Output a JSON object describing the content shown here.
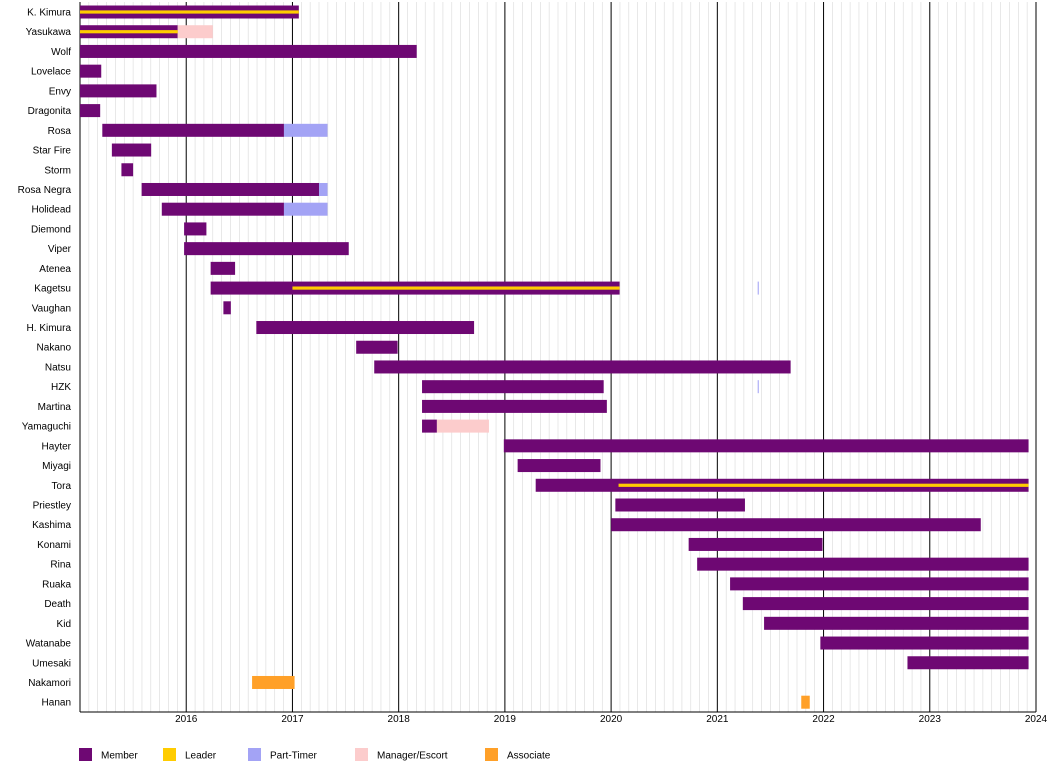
{
  "chart_data": {
    "type": "gantt",
    "title": "",
    "xlabel": "",
    "ylabel": "",
    "xlim": [
      2015.0,
      2024.0
    ],
    "x_ticks": [
      "2016",
      "2017",
      "2018",
      "2019",
      "2020",
      "2021",
      "2022",
      "2023",
      "2024"
    ],
    "grid": "monthly minor lines, yearly major lines",
    "legend_position": "bottom",
    "colors": {
      "Member": "#6e0873",
      "Leader": "#ffcc00",
      "Part-Timer": "#a3a3f5",
      "Manager/Escort": "#fccccc",
      "Associate": "#ffa028"
    },
    "legend": [
      "Member",
      "Leader",
      "Part-Timer",
      "Manager/Escort",
      "Associate"
    ],
    "rows": [
      {
        "name": "K. Kimura",
        "bars": [
          {
            "role": "Member",
            "start": 2015.0,
            "end": 2017.06
          },
          {
            "role": "Leader",
            "start": 2015.0,
            "end": 2017.06,
            "overlay": true
          }
        ]
      },
      {
        "name": "Yasukawa",
        "bars": [
          {
            "role": "Member",
            "start": 2015.0,
            "end": 2015.92
          },
          {
            "role": "Manager/Escort",
            "start": 2015.92,
            "end": 2016.25
          },
          {
            "role": "Leader",
            "start": 2015.0,
            "end": 2015.92,
            "overlay": true
          }
        ]
      },
      {
        "name": "Wolf",
        "bars": [
          {
            "role": "Member",
            "start": 2015.0,
            "end": 2018.17
          }
        ]
      },
      {
        "name": "Lovelace",
        "bars": [
          {
            "role": "Member",
            "start": 2015.0,
            "end": 2015.2
          }
        ]
      },
      {
        "name": "Envy",
        "bars": [
          {
            "role": "Member",
            "start": 2015.0,
            "end": 2015.72
          }
        ]
      },
      {
        "name": "Dragonita",
        "bars": [
          {
            "role": "Member",
            "start": 2015.0,
            "end": 2015.19
          }
        ]
      },
      {
        "name": "Rosa",
        "bars": [
          {
            "role": "Member",
            "start": 2015.21,
            "end": 2016.92
          },
          {
            "role": "Part-Timer",
            "start": 2016.92,
            "end": 2017.33
          }
        ]
      },
      {
        "name": "Star Fire",
        "bars": [
          {
            "role": "Member",
            "start": 2015.3,
            "end": 2015.67
          }
        ]
      },
      {
        "name": "Storm",
        "bars": [
          {
            "role": "Member",
            "start": 2015.39,
            "end": 2015.5
          }
        ]
      },
      {
        "name": "Rosa Negra",
        "bars": [
          {
            "role": "Member",
            "start": 2015.58,
            "end": 2017.25
          },
          {
            "role": "Part-Timer",
            "start": 2017.25,
            "end": 2017.33
          }
        ]
      },
      {
        "name": "Holidead",
        "bars": [
          {
            "role": "Member",
            "start": 2015.77,
            "end": 2016.92
          },
          {
            "role": "Part-Timer",
            "start": 2016.92,
            "end": 2017.33
          }
        ]
      },
      {
        "name": "Diemond",
        "bars": [
          {
            "role": "Member",
            "start": 2015.98,
            "end": 2016.19
          }
        ]
      },
      {
        "name": "Viper",
        "bars": [
          {
            "role": "Member",
            "start": 2015.98,
            "end": 2017.53
          }
        ]
      },
      {
        "name": "Atenea",
        "bars": [
          {
            "role": "Member",
            "start": 2016.23,
            "end": 2016.46
          }
        ]
      },
      {
        "name": "Kagetsu",
        "bars": [
          {
            "role": "Member",
            "start": 2016.23,
            "end": 2020.08
          },
          {
            "role": "Leader",
            "start": 2017.0,
            "end": 2020.08,
            "overlay": true
          },
          {
            "role": "Part-Timer",
            "start": 2021.38,
            "end": 2021.39
          }
        ]
      },
      {
        "name": "Vaughan",
        "bars": [
          {
            "role": "Member",
            "start": 2016.35,
            "end": 2016.42
          }
        ]
      },
      {
        "name": "H. Kimura",
        "bars": [
          {
            "role": "Member",
            "start": 2016.66,
            "end": 2018.71
          }
        ]
      },
      {
        "name": "Nakano",
        "bars": [
          {
            "role": "Member",
            "start": 2017.6,
            "end": 2017.99
          }
        ]
      },
      {
        "name": "Natsu",
        "bars": [
          {
            "role": "Member",
            "start": 2017.77,
            "end": 2021.69
          }
        ]
      },
      {
        "name": "HZK",
        "bars": [
          {
            "role": "Member",
            "start": 2018.22,
            "end": 2019.93
          },
          {
            "role": "Part-Timer",
            "start": 2021.38,
            "end": 2021.39
          }
        ]
      },
      {
        "name": "Martina",
        "bars": [
          {
            "role": "Member",
            "start": 2018.22,
            "end": 2019.96
          }
        ]
      },
      {
        "name": "Yamaguchi",
        "bars": [
          {
            "role": "Member",
            "start": 2018.22,
            "end": 2018.36
          },
          {
            "role": "Manager/Escort",
            "start": 2018.36,
            "end": 2018.85
          }
        ]
      },
      {
        "name": "Hayter",
        "bars": [
          {
            "role": "Member",
            "start": 2018.99,
            "end": 2023.93
          }
        ]
      },
      {
        "name": "Miyagi",
        "bars": [
          {
            "role": "Member",
            "start": 2019.12,
            "end": 2019.9
          }
        ]
      },
      {
        "name": "Tora",
        "bars": [
          {
            "role": "Member",
            "start": 2019.29,
            "end": 2023.93
          },
          {
            "role": "Leader",
            "start": 2020.07,
            "end": 2023.93,
            "overlay": true
          }
        ]
      },
      {
        "name": "Priestley",
        "bars": [
          {
            "role": "Member",
            "start": 2020.04,
            "end": 2021.26
          }
        ]
      },
      {
        "name": "Kashima",
        "bars": [
          {
            "role": "Member",
            "start": 2020.0,
            "end": 2023.48
          }
        ]
      },
      {
        "name": "Konami",
        "bars": [
          {
            "role": "Member",
            "start": 2020.73,
            "end": 2021.99
          }
        ]
      },
      {
        "name": "Rina",
        "bars": [
          {
            "role": "Member",
            "start": 2020.81,
            "end": 2023.93
          }
        ]
      },
      {
        "name": "Ruaka",
        "bars": [
          {
            "role": "Member",
            "start": 2021.12,
            "end": 2023.93
          }
        ]
      },
      {
        "name": "Death",
        "bars": [
          {
            "role": "Member",
            "start": 2021.24,
            "end": 2023.93
          }
        ]
      },
      {
        "name": "Kid",
        "bars": [
          {
            "role": "Member",
            "start": 2021.44,
            "end": 2023.93
          }
        ]
      },
      {
        "name": "Watanabe",
        "bars": [
          {
            "role": "Member",
            "start": 2021.97,
            "end": 2023.93
          }
        ]
      },
      {
        "name": "Umesaki",
        "bars": [
          {
            "role": "Member",
            "start": 2022.79,
            "end": 2023.93
          }
        ]
      },
      {
        "name": "Nakamori",
        "bars": [
          {
            "role": "Associate",
            "start": 2016.62,
            "end": 2017.02
          }
        ]
      },
      {
        "name": "Hanan",
        "bars": [
          {
            "role": "Associate",
            "start": 2021.79,
            "end": 2021.87
          }
        ]
      }
    ]
  }
}
